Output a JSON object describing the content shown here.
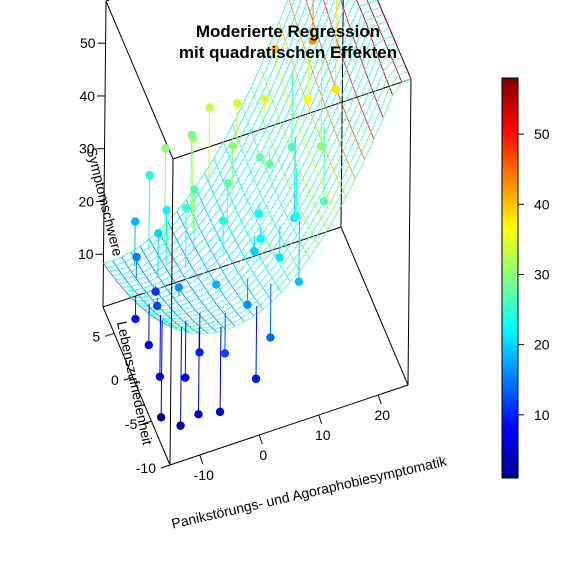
{
  "chart_data": {
    "type": "scatter",
    "title_line1": "Moderierte Regression",
    "title_line2": "mit quadratischen Effekten",
    "xlabel": "Panikstörungs- und Agoraphobiesymptomatik",
    "ylabel": "Lebenszufriedenheit",
    "zlabel": "Symptomschwere",
    "x_ticks": [
      "-10",
      "0",
      "10",
      "20"
    ],
    "y_ticks": [
      "-10",
      "-5",
      "0",
      "5"
    ],
    "z_ticks": [
      "10",
      "20",
      "30",
      "40",
      "50"
    ],
    "colorbar_ticks": [
      "10",
      "20",
      "30",
      "40",
      "50"
    ],
    "xlim": [
      -15,
      25
    ],
    "ylim": [
      -10,
      8
    ],
    "zlim": [
      0,
      58
    ],
    "colorbar_range": [
      1,
      58
    ],
    "colormap": [
      "#00008F",
      "#0000FF",
      "#0080FF",
      "#00FFFF",
      "#80FF80",
      "#FFFF00",
      "#FF8000",
      "#FF0000",
      "#800000"
    ],
    "surface": "quadratic fit with interaction, colored by fitted value",
    "points": [
      {
        "x": 22,
        "y": 6,
        "z": 58
      },
      {
        "x": 18,
        "y": 5,
        "z": 43
      },
      {
        "x": 16,
        "y": 3,
        "z": 36
      },
      {
        "x": 20,
        "y": 2,
        "z": 38
      },
      {
        "x": 14,
        "y": 4,
        "z": 26
      },
      {
        "x": 12,
        "y": 0,
        "z": 20
      },
      {
        "x": 10,
        "y": 5,
        "z": 35
      },
      {
        "x": 8,
        "y": 3,
        "z": 28
      },
      {
        "x": 6,
        "y": 6,
        "z": 34
      },
      {
        "x": 5,
        "y": -2,
        "z": 22
      },
      {
        "x": 4,
        "y": 4,
        "z": 30
      },
      {
        "x": 2,
        "y": 2,
        "z": 27
      },
      {
        "x": 0,
        "y": 0,
        "z": 24
      },
      {
        "x": -2,
        "y": 5,
        "z": 32
      },
      {
        "x": -3,
        "y": -3,
        "z": 18
      },
      {
        "x": -5,
        "y": 2,
        "z": 25
      },
      {
        "x": -6,
        "y": 6,
        "z": 30
      },
      {
        "x": -8,
        "y": -1,
        "z": 16
      },
      {
        "x": -9,
        "y": 3,
        "z": 20
      },
      {
        "x": -10,
        "y": -6,
        "z": 8
      },
      {
        "x": -11,
        "y": 0,
        "z": 12
      },
      {
        "x": -12,
        "y": 4,
        "z": 15
      },
      {
        "x": -13,
        "y": -4,
        "z": 6
      },
      {
        "x": -14,
        "y": 1,
        "z": 9
      },
      {
        "x": -12,
        "y": -8,
        "z": 3
      },
      {
        "x": -7,
        "y": -5,
        "z": 10
      },
      {
        "x": -4,
        "y": -7,
        "z": 12
      },
      {
        "x": 1,
        "y": -5,
        "z": 16
      },
      {
        "x": 3,
        "y": -8,
        "z": 14
      },
      {
        "x": 7,
        "y": -4,
        "z": 21
      },
      {
        "x": 9,
        "y": -6,
        "z": 19
      },
      {
        "x": 11,
        "y": -2,
        "z": 24
      },
      {
        "x": 15,
        "y": -3,
        "z": 27
      },
      {
        "x": 17,
        "y": 1,
        "z": 30
      },
      {
        "x": -1,
        "y": 7,
        "z": 29
      },
      {
        "x": 2,
        "y": 7,
        "z": 33
      },
      {
        "x": -6,
        "y": -9,
        "z": 5
      },
      {
        "x": -9,
        "y": -8,
        "z": 4
      },
      {
        "x": -11,
        "y": 6,
        "z": 18
      },
      {
        "x": 6,
        "y": 0,
        "z": 23
      },
      {
        "x": 13,
        "y": 7,
        "z": 40
      },
      {
        "x": -3,
        "y": 3,
        "z": 26
      },
      {
        "x": -13,
        "y": -1,
        "z": 7
      },
      {
        "x": -10,
        "y": 2,
        "z": 11
      },
      {
        "x": 4,
        "y": -2,
        "z": 20
      },
      {
        "x": 9,
        "y": 2,
        "z": 28
      },
      {
        "x": -7,
        "y": 4,
        "z": 22
      },
      {
        "x": 0,
        "y": -9,
        "z": 9
      },
      {
        "x": -14,
        "y": -6,
        "z": 2
      },
      {
        "x": -8,
        "y": 7,
        "z": 24
      }
    ]
  }
}
